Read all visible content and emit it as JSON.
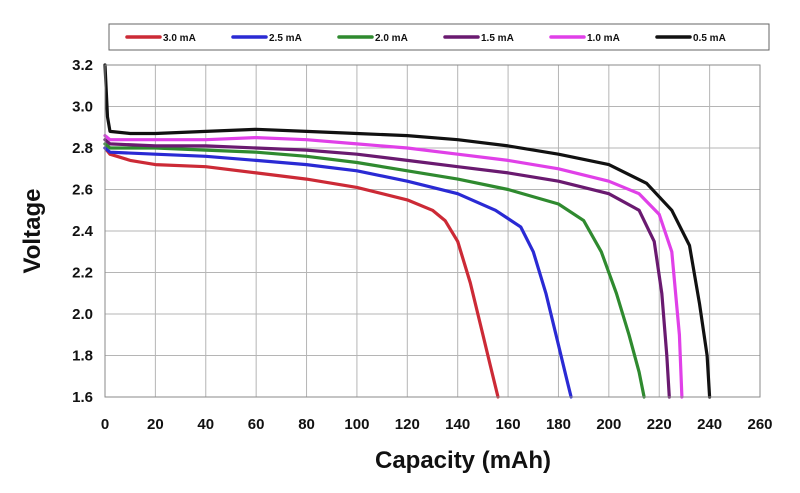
{
  "chart_data": {
    "type": "line",
    "xlabel": "Capacity (mAh)",
    "ylabel": "Voltage",
    "xlim": [
      0,
      260
    ],
    "ylim": [
      1.6,
      3.2
    ],
    "x_ticks": [
      0,
      20,
      40,
      60,
      80,
      100,
      120,
      140,
      160,
      180,
      200,
      220,
      240,
      260
    ],
    "y_ticks": [
      1.6,
      1.8,
      2.0,
      2.2,
      2.4,
      2.6,
      2.8,
      3.0,
      3.2
    ],
    "grid": true,
    "legend_position": "top",
    "series": [
      {
        "name": "3.0 mA",
        "color": "#cc2a36",
        "points": [
          [
            0,
            2.8
          ],
          [
            2,
            2.77
          ],
          [
            10,
            2.74
          ],
          [
            20,
            2.72
          ],
          [
            40,
            2.71
          ],
          [
            60,
            2.68
          ],
          [
            80,
            2.65
          ],
          [
            100,
            2.61
          ],
          [
            120,
            2.55
          ],
          [
            130,
            2.5
          ],
          [
            135,
            2.45
          ],
          [
            140,
            2.35
          ],
          [
            145,
            2.15
          ],
          [
            150,
            1.9
          ],
          [
            153,
            1.75
          ],
          [
            156,
            1.6
          ]
        ]
      },
      {
        "name": "2.5 mA",
        "color": "#2a2ad4",
        "points": [
          [
            0,
            2.8
          ],
          [
            2,
            2.78
          ],
          [
            20,
            2.77
          ],
          [
            40,
            2.76
          ],
          [
            60,
            2.74
          ],
          [
            80,
            2.72
          ],
          [
            100,
            2.69
          ],
          [
            120,
            2.64
          ],
          [
            140,
            2.58
          ],
          [
            155,
            2.5
          ],
          [
            165,
            2.42
          ],
          [
            170,
            2.3
          ],
          [
            175,
            2.1
          ],
          [
            180,
            1.85
          ],
          [
            183,
            1.7
          ],
          [
            185,
            1.6
          ]
        ]
      },
      {
        "name": "2.0 mA",
        "color": "#2f8a2f",
        "points": [
          [
            0,
            2.82
          ],
          [
            2,
            2.8
          ],
          [
            20,
            2.8
          ],
          [
            40,
            2.79
          ],
          [
            60,
            2.78
          ],
          [
            80,
            2.76
          ],
          [
            100,
            2.73
          ],
          [
            120,
            2.69
          ],
          [
            140,
            2.65
          ],
          [
            160,
            2.6
          ],
          [
            180,
            2.53
          ],
          [
            190,
            2.45
          ],
          [
            197,
            2.3
          ],
          [
            203,
            2.1
          ],
          [
            208,
            1.9
          ],
          [
            212,
            1.72
          ],
          [
            214,
            1.6
          ]
        ]
      },
      {
        "name": "1.5 mA",
        "color": "#6a1a70",
        "points": [
          [
            0,
            2.84
          ],
          [
            2,
            2.82
          ],
          [
            20,
            2.81
          ],
          [
            40,
            2.81
          ],
          [
            60,
            2.8
          ],
          [
            80,
            2.79
          ],
          [
            100,
            2.77
          ],
          [
            120,
            2.74
          ],
          [
            140,
            2.71
          ],
          [
            160,
            2.68
          ],
          [
            180,
            2.64
          ],
          [
            200,
            2.58
          ],
          [
            212,
            2.5
          ],
          [
            218,
            2.35
          ],
          [
            221,
            2.1
          ],
          [
            223,
            1.8
          ],
          [
            224,
            1.6
          ]
        ]
      },
      {
        "name": "1.0 mA",
        "color": "#e040e8",
        "points": [
          [
            0,
            2.86
          ],
          [
            2,
            2.84
          ],
          [
            20,
            2.84
          ],
          [
            40,
            2.84
          ],
          [
            60,
            2.85
          ],
          [
            80,
            2.84
          ],
          [
            100,
            2.82
          ],
          [
            120,
            2.8
          ],
          [
            140,
            2.77
          ],
          [
            160,
            2.74
          ],
          [
            180,
            2.7
          ],
          [
            200,
            2.64
          ],
          [
            212,
            2.58
          ],
          [
            220,
            2.48
          ],
          [
            225,
            2.3
          ],
          [
            228,
            1.9
          ],
          [
            229,
            1.6
          ]
        ]
      },
      {
        "name": "0.5 mA",
        "color": "#111111",
        "points": [
          [
            0,
            3.2
          ],
          [
            1,
            2.95
          ],
          [
            2,
            2.88
          ],
          [
            10,
            2.87
          ],
          [
            20,
            2.87
          ],
          [
            40,
            2.88
          ],
          [
            60,
            2.89
          ],
          [
            80,
            2.88
          ],
          [
            100,
            2.87
          ],
          [
            120,
            2.86
          ],
          [
            140,
            2.84
          ],
          [
            160,
            2.81
          ],
          [
            180,
            2.77
          ],
          [
            200,
            2.72
          ],
          [
            215,
            2.63
          ],
          [
            225,
            2.5
          ],
          [
            232,
            2.33
          ],
          [
            236,
            2.05
          ],
          [
            239,
            1.8
          ],
          [
            240,
            1.6
          ]
        ]
      }
    ]
  }
}
